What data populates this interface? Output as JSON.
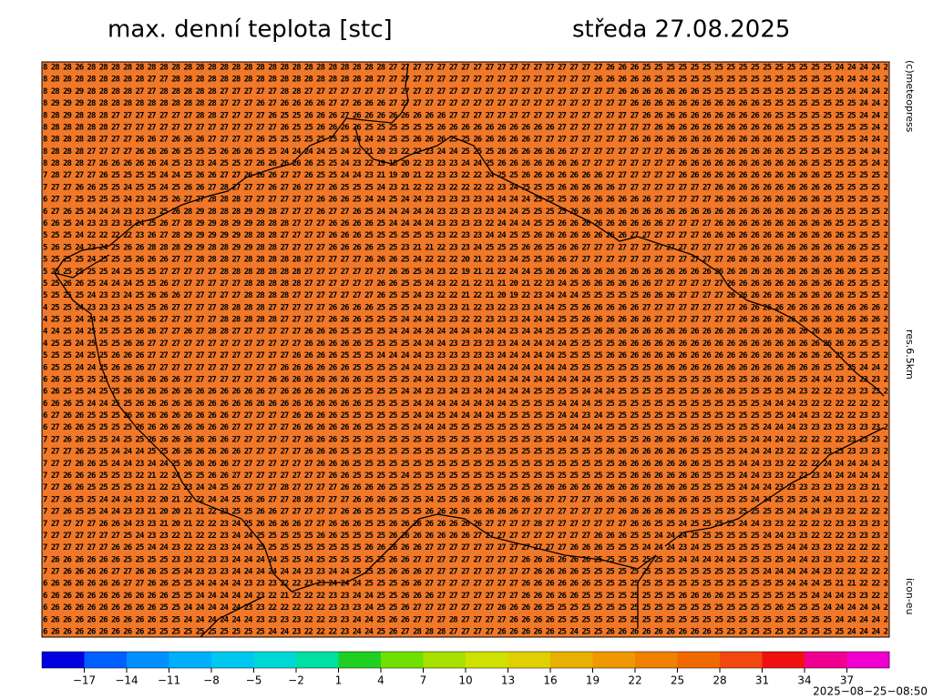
{
  "header": {
    "title": "max. denní teplota [stc]",
    "date": "středa 27.08.2025"
  },
  "side_labels": {
    "copyright": "(c)meteopress",
    "resolution": "res.6.5km",
    "model": "icon-eu"
  },
  "map": {
    "fill_color": "#f07828",
    "rows": [
      "8 28 28 26 28 28 28 28 28 28 28 28 28 28 28 28 28 28 28 28 28 28 28 28 28 28 28 28 28 27 27 27 27 27 27 27 27 27 27 27 27 27 27 27 27 27 27 26 26 26 25 25 25 25 25 25 25 25 25 25 25 25 25 25 25 25 24 24 24 24 2",
      "8 28 28 28 28 28 28 28 28 27 27 28 28 28 28 28 28 28 28 28 28 28 28 28 28 28 28 28 27 27 27 27 27 27 27 27 27 27 27 27 27 27 27 27 27 27 26 26 26 26 26 25 25 25 25 25 25 25 25 25 25 25 25 25 25 25 24 24 24 24 2",
      "8 28 29 29 28 28 28 28 27 27 28 28 28 28 28 27 27 27 27 27 28 28 27 27 27 27 27 27 27 27 27 27 27 27 27 27 27 27 27 27 27 27 27 27 27 27 27 27 26 26 26 26 26 26 26 25 25 25 25 25 25 25 25 25 25 25 25 24 24 24 2",
      "8 29 29 29 28 28 28 28 28 28 28 28 28 28 28 27 27 27 26 27 26 26 26 26 27 27 26 26 26 27 27 27 27 27 27 27 27 27 27 27 27 27 27 27 27 27 27 27 27 26 26 26 26 26 26 26 26 26 26 26 25 25 25 25 25 25 25 25 24 24 2",
      "8 28 29 28 28 28 27 27 27 27 27 27 27 28 28 27 27 27 27 26 25 25 26 26 26 27 26 26 26 26 26 26 26 26 27 27 27 27 27 27 27 27 27 27 27 27 27 27 27 27 26 26 26 26 26 26 26 26 26 26 26 25 25 25 25 25 25 25 24 24 2",
      "8 28 28 28 28 28 27 27 27 27 27 27 27 27 27 27 27 27 27 27 26 25 25 26 26 26 26 25 25 25 25 25 25 26 26 26 26 26 26 26 26 26 26 27 27 27 27 27 27 27 27 26 26 26 26 26 26 26 26 26 26 26 25 25 25 25 25 25 25 24 2",
      "8 28 28 28 28 27 27 27 26 26 27 26 26 26 27 27 27 27 26 25 25 25 25 25 25 25 24 24 24 25 25 26 26 26 25 25 26 26 26 26 26 27 27 27 27 27 27 27 27 26 26 26 26 26 26 26 26 26 26 26 26 26 25 25 25 25 25 25 24 24 2",
      "8 28 28 28 27 27 27 27 26 26 26 26 25 25 25 26 26 26 25 25 24 24 24 24 25 24 22 21 20 23 22 22 23 24 24 25 25 25 26 26 26 26 26 26 27 27 27 27 27 27 27 27 26 26 26 26 26 26 26 26 26 26 25 25 25 25 25 25 24 24 2",
      "8 28 28 28 27 26 26 26 26 26 24 25 23 23 24 25 25 27 26 26 26 26 26 25 25 24 23 22 19 18 20 22 23 23 23 24 24 25 26 26 26 26 26 26 26 27 27 27 27 27 27 27 27 26 26 26 26 26 26 26 26 26 26 26 25 25 25 25 25 24 2",
      "7 28 27 27 27 26 25 25 25 25 24 24 25 26 26 27 27 26 26 26 27 27 26 25 25 24 24 23 21 19 20 21 22 23 23 22 22 24 25 25 26 26 26 26 26 26 26 27 27 27 27 27 27 26 26 26 26 26 26 26 26 26 26 26 26 25 25 25 25 25 2",
      "7 27 27 26 26 25 25 24 25 25 24 25 26 26 27 28 27 27 27 26 27 26 27 27 26 25 25 25 24 23 21 22 22 23 22 22 22 22 23 24 25 25 25 26 26 26 26 26 27 27 27 27 27 27 27 27 26 26 26 26 26 26 26 26 26 26 25 25 25 25 2",
      "6 27 27 25 25 25 25 24 23 24 25 26 27 27 28 28 28 27 27 27 27 27 27 26 26 26 25 24 24 25 24 24 23 23 23 23 23 24 24 24 24 25 25 25 26 26 26 26 26 26 26 27 27 27 27 27 26 26 26 26 26 26 26 26 26 25 25 25 25 25 2",
      "6 27 26 25 24 24 24 23 23 23 25 26 28 29 28 28 28 29 29 28 27 27 27 26 27 27 26 25 24 24 24 24 24 23 23 23 23 23 24 24 25 25 25 25 26 26 26 26 26 26 26 26 26 26 26 26 26 26 26 26 26 26 26 26 26 26 25 25 25 25 2",
      "6 26 25 24 23 23 23 23 24 25 26 27 28 29 29 28 29 29 28 28 28 27 27 27 26 26 26 26 25 24 24 24 24 23 23 23 23 22 24 24 24 25 25 26 26 26 26 26 26 26 26 26 27 27 27 27 26 26 26 26 26 26 26 26 26 26 25 25 25 25 2",
      "5 25 25 24 22 22 22 22 23 26 27 28 29 29 29 29 29 28 28 28 27 27 27 27 26 26 26 25 25 25 25 25 25 23 22 23 23 24 24 25 25 26 26 26 26 26 26 26 26 27 27 27 27 27 27 26 26 26 26 26 26 26 26 26 26 26 26 25 25 25 2",
      "5 26 25 24 23 24 25 26 26 28 28 28 29 29 28 28 29 29 28 28 27 27 27 27 26 26 26 26 25 25 23 21 21 22 23 23 24 25 25 25 26 26 25 26 26 27 27 27 27 27 27 27 27 27 27 27 27 27 26 26 26 26 26 26 26 26 26 26 25 25 2",
      "5 25 25 25 24 25 25 25 26 26 26 27 27 28 28 28 27 28 28 28 28 28 27 27 27 27 27 26 26 26 25 24 22 22 22 20 21 22 23 24 25 25 26 26 27 27 27 27 27 27 27 27 27 27 27 27 27 26 26 26 26 26 26 26 26 26 26 26 25 25 2",
      "5 25 25 25 25 25 24 25 25 25 27 27 27 27 27 28 28 28 28 28 28 28 27 27 27 27 27 27 27 26 26 25 24 23 22 19 21 21 22 24 24 25 26 26 26 26 26 26 26 26 26 26 26 26 26 26 26 26 26 26 26 26 26 26 26 26 26 26 25 25 2",
      "5 25 26 26 25 24 24 24 25 25 26 27 27 27 27 27 27 28 28 28 28 28 27 27 27 27 27 27 26 26 25 25 24 23 22 21 22 21 21 20 21 22 23 24 25 26 26 26 26 26 26 27 27 27 27 27 27 26 26 26 26 26 26 26 26 26 26 25 25 25 2",
      "5 25 25 25 24 23 23 24 25 26 26 26 27 27 27 27 27 28 28 28 28 27 27 27 27 27 27 27 26 25 25 24 23 22 22 21 22 21 20 19 22 23 24 24 24 25 25 25 25 25 26 26 26 27 27 27 27 26 26 26 26 26 26 26 26 26 26 25 25 25 2",
      "4 25 25 24 23 23 23 24 25 25 26 27 27 27 27 28 28 28 28 27 27 27 27 27 26 26 26 26 25 25 25 24 23 23 23 21 22 23 22 23 23 24 24 25 25 26 26 26 26 26 27 27 27 27 27 27 27 27 26 26 26 26 26 26 26 26 26 26 26 26 2",
      "4 25 25 24 24 24 25 25 26 26 27 27 27 27 27 28 28 28 28 28 27 27 27 27 26 26 26 25 25 25 24 24 24 23 23 22 22 23 23 23 24 24 24 25 25 26 26 26 26 26 26 27 27 27 27 27 27 27 26 26 26 26 26 26 26 26 26 26 26 26 2",
      "4 24 25 24 25 25 25 25 26 26 27 27 26 27 28 28 27 27 27 27 27 27 26 26 26 25 25 25 25 24 24 24 24 24 24 24 24 24 24 23 24 24 25 25 25 25 26 26 26 26 26 26 26 26 26 26 26 26 26 26 26 26 26 26 26 26 26 26 25 25 2",
      "4 25 25 24 25 25 25 26 26 27 27 27 27 27 27 27 27 27 27 27 27 27 26 26 26 26 26 25 25 25 25 24 24 24 23 23 23 23 23 24 24 24 24 24 25 25 25 25 26 26 26 26 26 26 26 26 26 26 26 26 26 26 26 26 26 26 26 26 25 25 2",
      "5 25 25 24 25 25 26 26 26 27 27 27 27 27 27 27 27 27 27 27 27 26 26 26 26 25 25 25 24 24 24 24 23 23 23 23 23 23 24 24 24 24 24 25 25 25 25 26 26 26 26 26 26 26 26 26 26 26 26 26 26 26 26 26 26 26 25 25 25 25 2",
      "6 25 25 24 24 25 26 26 26 27 27 27 27 27 27 27 27 27 27 27 26 26 26 26 26 26 25 25 25 25 24 24 23 23 23 23 24 24 24 24 24 24 24 24 25 25 25 25 25 25 25 26 26 26 26 26 26 26 26 26 26 26 26 26 26 25 25 25 24 24 2",
      "6 26 25 25 25 25 25 26 26 26 26 26 27 27 27 27 27 27 27 26 26 26 26 26 26 26 26 25 25 25 25 24 24 23 23 23 23 24 24 24 24 24 24 24 24 24 25 25 25 25 25 25 25 25 25 25 25 25 25 26 26 26 25 25 24 24 23 23 23 23 2",
      "6 26 25 25 24 25 25 26 26 26 26 26 26 26 26 26 26 26 26 27 26 26 26 26 26 26 25 25 25 25 24 24 23 23 24 23 24 24 24 24 24 25 25 25 25 24 24 24 25 25 25 25 25 25 25 26 26 26 25 25 25 25 24 23 22 22 22 23 23 23 2",
      "6 26 26 25 24 24 25 25 26 26 26 26 26 26 26 26 26 26 26 26 26 26 26 26 26 26 26 25 25 25 25 24 24 24 24 24 24 24 24 25 25 25 25 24 24 24 25 25 25 25 25 25 25 25 25 25 25 25 25 25 24 24 24 23 22 22 22 22 22 22 2",
      "6 27 26 26 25 25 25 26 26 26 26 26 26 26 26 26 27 27 27 27 27 26 26 26 26 25 25 25 25 25 25 24 24 25 24 24 24 24 25 25 25 25 25 24 24 23 24 25 25 25 25 25 25 25 25 25 25 25 25 25 25 25 24 24 23 22 22 22 23 23 2",
      "6 27 26 26 25 25 25 25 26 26 26 26 26 26 26 26 27 27 27 27 27 26 26 26 26 26 26 25 25 25 25 24 24 24 25 25 25 25 25 25 25 25 25 25 24 24 24 25 25 25 25 25 25 25 25 25 25 25 25 25 24 24 24 23 23 23 23 23 23 23 2",
      "7 27 26 26 25 25 24 25 25 26 26 26 26 26 26 26 27 27 27 27 27 27 26 26 26 25 25 25 25 25 25 25 25 25 25 25 25 25 25 25 25 25 25 24 24 24 25 25 25 25 26 26 26 26 26 26 26 25 25 24 24 24 22 22 22 22 22 23 23 23 2",
      "7 27 27 26 25 25 24 24 24 25 25 26 26 26 26 26 26 27 27 27 27 27 26 26 26 25 25 25 25 25 25 25 25 25 25 25 25 25 25 25 25 25 25 25 25 25 25 26 26 26 26 26 26 26 25 25 25 25 24 24 24 23 22 22 22 23 23 23 23 23 2",
      "7 27 27 26 26 25 24 24 23 24 24 25 26 26 26 26 27 27 27 27 27 27 27 26 26 26 25 25 25 25 25 25 25 25 25 25 25 25 25 25 25 25 25 25 25 25 25 25 26 26 26 26 26 26 26 25 25 25 24 24 23 23 22 22 22 24 24 24 24 24 2",
      "7 27 26 26 26 25 25 23 22 21 22 24 25 25 26 26 27 27 27 27 27 27 27 27 26 26 25 25 25 25 24 25 25 25 25 25 25 25 25 25 25 25 25 25 25 25 25 25 25 26 26 26 26 26 26 25 25 25 24 24 23 23 22 22 23 24 24 24 24 24 2",
      "7 27 26 26 25 25 25 25 23 21 22 23 23 24 24 25 26 27 27 27 28 27 27 27 27 26 26 26 26 25 25 25 25 25 25 25 25 25 25 25 25 26 26 26 26 26 26 26 26 26 26 26 26 26 25 25 25 25 24 24 24 23 23 23 23 23 23 23 23 21 2",
      "7 27 26 25 25 24 24 24 23 22 20 21 22 22 24 24 25 26 26 27 27 28 28 27 27 27 26 26 26 26 25 25 24 25 25 26 26 26 26 26 26 26 27 27 27 27 26 26 26 26 26 26 26 26 26 25 25 25 25 24 24 25 25 25 24 24 23 21 21 22 2",
      "7 27 26 25 25 24 24 23 23 21 20 20 21 21 22 23 25 25 26 26 27 27 27 27 27 26 26 25 25 25 25 25 26 26 26 26 26 26 26 26 27 27 27 27 27 27 27 27 26 26 26 26 26 26 25 25 25 25 25 25 25 25 24 24 24 23 23 22 22 22 2",
      "7 27 27 27 27 26 26 24 23 23 21 20 21 22 22 23 24 25 26 26 26 26 27 27 26 26 26 25 25 26 26 26 26 26 26 26 26 27 27 27 27 28 27 27 27 27 27 27 27 26 26 25 25 24 25 25 25 25 24 24 23 23 22 22 22 22 23 23 23 23 2",
      "7 27 27 27 27 27 27 25 24 23 23 22 21 22 22 23 24 24 25 25 25 25 25 26 26 25 25 25 25 26 26 26 26 26 26 26 27 27 27 27 27 27 27 27 27 27 26 26 26 25 25 24 24 24 25 25 25 25 25 25 24 24 23 23 22 22 22 23 23 23 2",
      "7 27 27 27 27 27 26 26 25 24 24 23 22 22 23 23 24 24 25 25 25 25 25 25 25 25 25 26 26 26 26 26 27 27 27 27 27 27 27 27 27 27 27 27 26 26 26 25 25 25 24 24 24 23 24 25 25 25 25 25 25 25 24 24 23 23 22 22 22 22 2",
      "7 26 26 26 26 26 26 25 25 25 25 23 23 22 23 23 24 24 24 24 25 25 24 25 25 25 25 25 25 26 26 27 27 27 27 27 27 27 27 27 26 26 26 26 26 26 25 25 25 25 25 25 25 24 24 24 24 24 25 25 25 25 24 24 23 23 23 22 22 22 2",
      "7 27 26 26 26 26 27 27 26 26 25 25 24 23 23 23 24 24 24 24 24 24 23 23 24 24 25 25 25 26 26 26 27 27 27 27 27 27 27 27 27 26 26 26 26 25 25 25 25 25 25 25 25 25 25 25 25 25 25 25 24 24 24 24 24 23 22 22 22 22 2",
      "6 26 26 26 26 26 26 27 27 26 26 25 25 24 24 24 24 23 23 23 22 22 23 23 24 24 24 25 25 25 26 26 27 27 27 27 27 27 27 27 26 26 26 26 26 26 25 25 25 25 25 25 25 25 25 25 25 25 25 25 25 25 24 24 24 25 21 21 22 22 2",
      "6 26 26 26 26 26 26 26 26 26 26 25 25 24 24 24 24 24 23 22 21 22 22 22 23 23 24 24 25 25 26 26 26 27 27 27 27 27 27 27 26 26 26 26 26 25 25 25 25 25 25 25 25 26 26 26 26 25 25 25 25 25 25 25 24 24 24 23 23 22 2",
      "6 26 26 26 26 26 26 26 26 26 25 25 24 24 24 24 24 23 23 22 22 22 22 22 23 23 23 24 25 25 26 27 27 27 27 27 27 27 26 26 26 26 25 25 25 25 25 25 25 25 25 25 25 25 25 25 25 25 25 25 25 26 25 25 25 24 24 24 24 24 2",
      "6 26 26 26 26 26 26 26 26 26 25 25 24 24 24 24 24 24 23 23 23 23 22 22 23 23 24 24 25 26 26 27 27 27 28 27 27 27 27 26 26 26 26 25 25 25 25 25 25 25 25 25 25 25 25 25 25 25 25 25 25 25 25 25 25 25 24 24 24 24 2",
      "6 26 26 26 26 26 26 26 26 25 25 25 25 25 25 25 25 25 25 24 24 23 22 22 22 23 24 24 25 26 27 28 28 28 27 27 27 27 26 26 26 26 26 25 24 25 25 26 26 26 26 26 26 26 26 26 25 25 25 25 25 25 25 25 25 25 25 24 24 24 2"
    ]
  },
  "colorbar": {
    "range": [
      -20,
      40
    ],
    "colors": [
      "#0000e0",
      "#0060ff",
      "#0090ff",
      "#00b0ff",
      "#00c8f0",
      "#00d8d8",
      "#00e0a0",
      "#20d020",
      "#70e000",
      "#a8e000",
      "#d0e000",
      "#e0d000",
      "#e8b000",
      "#f09800",
      "#f08000",
      "#f06800",
      "#f04810",
      "#f01010",
      "#f00090",
      "#f000d0"
    ],
    "ticks": [
      {
        "value": -17,
        "label": "−17"
      },
      {
        "value": -14,
        "label": "−14"
      },
      {
        "value": -11,
        "label": "−11"
      },
      {
        "value": -8,
        "label": "−8"
      },
      {
        "value": -5,
        "label": "−5"
      },
      {
        "value": -2,
        "label": "−2"
      },
      1,
      4,
      7,
      10,
      13,
      16,
      19,
      22,
      25,
      28,
      31,
      34,
      37
    ]
  },
  "timestamp": "2025−08−25−08:50"
}
